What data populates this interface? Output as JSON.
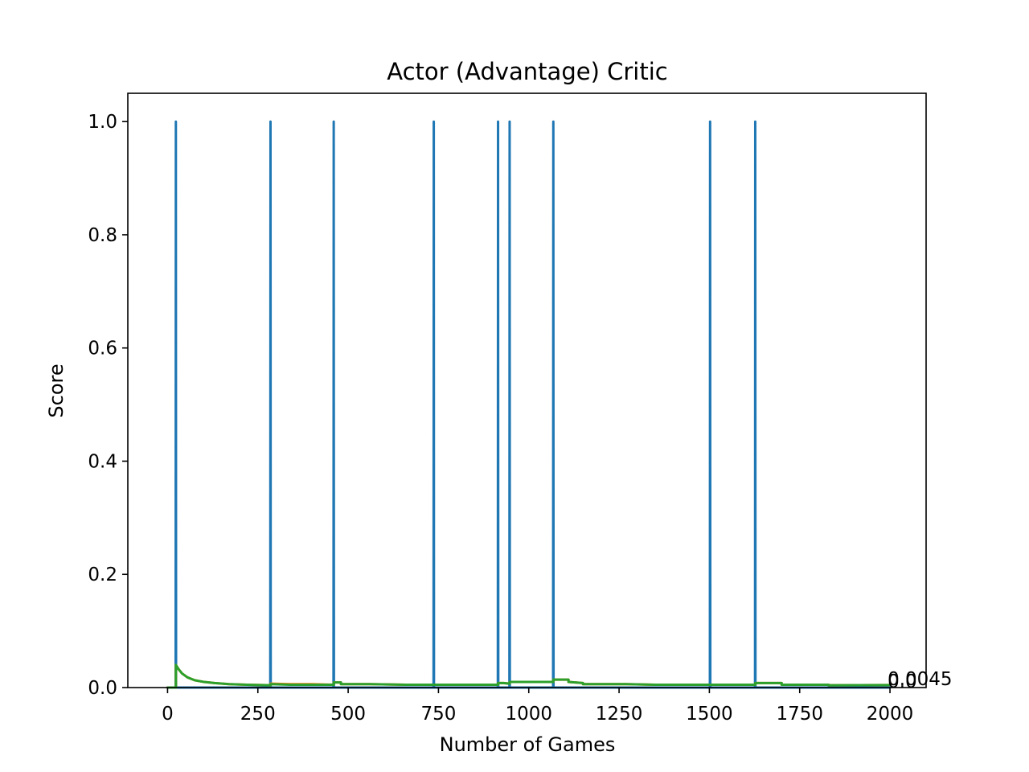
{
  "chart_data": {
    "type": "line",
    "title": "Actor (Advantage) Critic",
    "xlabel": "Number of Games",
    "ylabel": "Score",
    "xlim": [
      -110,
      2100
    ],
    "ylim": [
      0,
      1.05
    ],
    "x_ticks": [
      0,
      250,
      500,
      750,
      1000,
      1250,
      1500,
      1750,
      2000
    ],
    "x_tick_labels": [
      "0",
      "250",
      "500",
      "750",
      "1000",
      "1250",
      "1500",
      "1750",
      "2000"
    ],
    "y_ticks": [
      0.0,
      0.2,
      0.4,
      0.6,
      0.8,
      1.0
    ],
    "y_tick_labels": [
      "0.0",
      "0.2",
      "0.4",
      "0.6",
      "0.8",
      "1.0"
    ],
    "grid": false,
    "series": [
      {
        "color": "#1f77b4",
        "spike_games": [
          23,
          285,
          460,
          737,
          915,
          947,
          1068,
          1502,
          1627
        ],
        "spike_value": 1.0,
        "x_range": [
          0,
          2000
        ],
        "baseline": 0.0
      },
      {
        "color": "#ff7f0e",
        "points": [
          [
            0,
            0
          ],
          [
            23,
            0
          ],
          [
            23,
            0.04
          ],
          [
            30,
            0.033
          ],
          [
            40,
            0.025
          ],
          [
            55,
            0.018
          ],
          [
            75,
            0.013
          ],
          [
            100,
            0.01
          ],
          [
            130,
            0.008
          ],
          [
            170,
            0.006
          ],
          [
            220,
            0.005
          ],
          [
            285,
            0.004
          ],
          [
            285,
            0.007
          ],
          [
            340,
            0.006
          ],
          [
            400,
            0.006
          ],
          [
            460,
            0.005
          ],
          [
            460,
            0.009
          ],
          [
            480,
            0.009
          ],
          [
            480,
            0.006
          ],
          [
            560,
            0.006
          ],
          [
            660,
            0.005
          ],
          [
            737,
            0.005
          ],
          [
            737,
            0.005
          ],
          [
            915,
            0.005
          ],
          [
            915,
            0.008
          ],
          [
            930,
            0.008
          ],
          [
            947,
            0.007
          ],
          [
            947,
            0.01
          ],
          [
            1068,
            0.01
          ],
          [
            1068,
            0.014
          ],
          [
            1110,
            0.014
          ],
          [
            1110,
            0.01
          ],
          [
            1150,
            0.008
          ],
          [
            1150,
            0.006
          ],
          [
            1270,
            0.006
          ],
          [
            1350,
            0.005
          ],
          [
            1502,
            0.005
          ],
          [
            1627,
            0.005
          ],
          [
            1627,
            0.008
          ],
          [
            1700,
            0.008
          ],
          [
            1700,
            0.005
          ],
          [
            1830,
            0.005
          ],
          [
            1830,
            0.004
          ],
          [
            2000,
            0.0045
          ]
        ]
      },
      {
        "color": "#2ca02c",
        "points": [
          [
            0,
            0
          ],
          [
            23,
            0
          ],
          [
            23,
            0.04
          ],
          [
            30,
            0.033
          ],
          [
            40,
            0.025
          ],
          [
            55,
            0.018
          ],
          [
            75,
            0.013
          ],
          [
            100,
            0.01
          ],
          [
            130,
            0.008
          ],
          [
            170,
            0.006
          ],
          [
            220,
            0.005
          ],
          [
            285,
            0.004
          ],
          [
            285,
            0.006
          ],
          [
            340,
            0.005
          ],
          [
            400,
            0.005
          ],
          [
            460,
            0.005
          ],
          [
            460,
            0.009
          ],
          [
            480,
            0.009
          ],
          [
            480,
            0.006
          ],
          [
            560,
            0.006
          ],
          [
            660,
            0.005
          ],
          [
            737,
            0.005
          ],
          [
            737,
            0.005
          ],
          [
            915,
            0.005
          ],
          [
            915,
            0.008
          ],
          [
            930,
            0.008
          ],
          [
            947,
            0.007
          ],
          [
            947,
            0.01
          ],
          [
            1068,
            0.01
          ],
          [
            1068,
            0.014
          ],
          [
            1110,
            0.014
          ],
          [
            1110,
            0.01
          ],
          [
            1150,
            0.008
          ],
          [
            1150,
            0.006
          ],
          [
            1270,
            0.006
          ],
          [
            1350,
            0.005
          ],
          [
            1502,
            0.005
          ],
          [
            1627,
            0.005
          ],
          [
            1627,
            0.008
          ],
          [
            1700,
            0.008
          ],
          [
            1700,
            0.005
          ],
          [
            1830,
            0.005
          ],
          [
            1830,
            0.004
          ],
          [
            2000,
            0.0045
          ]
        ]
      }
    ],
    "annotations": [
      {
        "text": "0.0",
        "x": 2000,
        "y": 0.0
      },
      {
        "text": "0.0045",
        "x": 2000,
        "y": 0.0045
      }
    ]
  }
}
